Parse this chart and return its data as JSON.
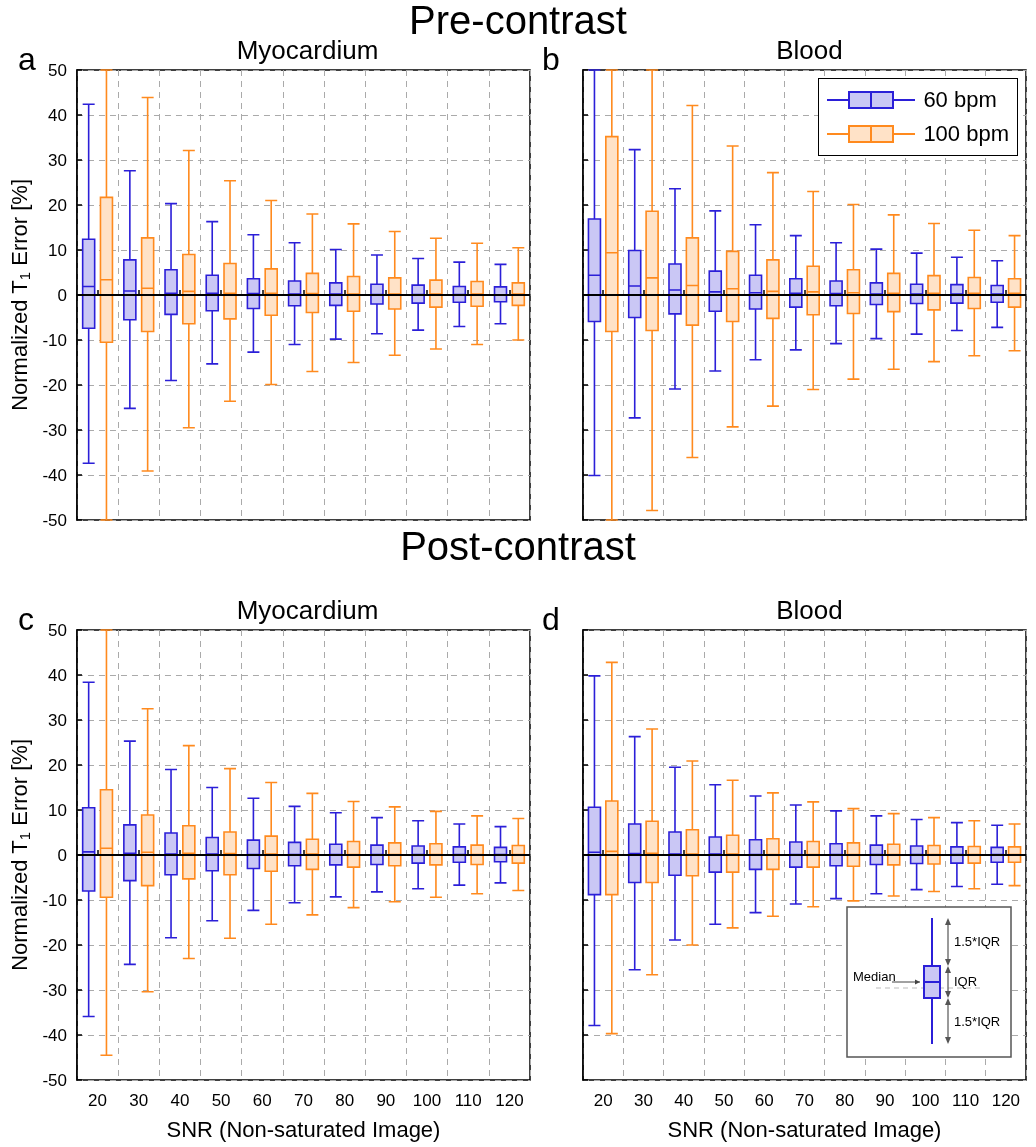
{
  "chart_data": [
    {
      "type": "box",
      "title": "Myocardium",
      "subtitle": "Pre-contrast",
      "ylabel": "Normalized T$_{1}$ Error [%]",
      "annotations": [
        "a"
      ],
      "categories": [
        "20",
        "30",
        "40",
        "50",
        "60",
        "70",
        "80",
        "90",
        "100",
        "110",
        "120"
      ],
      "ylim": [
        -50,
        50
      ],
      "yticks": [
        -50,
        -40,
        -30,
        -20,
        -10,
        0,
        10,
        20,
        30,
        40,
        50
      ],
      "grid": true,
      "legend": false,
      "tick_labels": "y",
      "ref_lines": [
        {
          "axis": "y",
          "value": 0,
          "color": "#000000"
        }
      ],
      "series": [
        {
          "color": "#2b1fd8",
          "boxes": [
            {
              "low": -37.4,
              "q1": -7.4,
              "median": 1.9,
              "q3": 12.4,
              "high": 42.4
            },
            {
              "low": -25.2,
              "q1": -5.5,
              "median": 0.9,
              "q3": 7.8,
              "high": 27.6
            },
            {
              "low": -19,
              "q1": -4.3,
              "median": 0.4,
              "q3": 5.6,
              "high": 20.3
            },
            {
              "low": -15.3,
              "q1": -3.5,
              "median": 0.4,
              "q3": 4.4,
              "high": 16.3
            },
            {
              "low": -12.7,
              "q1": -3,
              "median": 0.3,
              "q3": 3.6,
              "high": 13.4
            },
            {
              "low": -11,
              "q1": -2.4,
              "median": 0.2,
              "q3": 3.1,
              "high": 11.6
            },
            {
              "low": -9.8,
              "q1": -2.3,
              "median": 0.2,
              "q3": 2.7,
              "high": 10.1
            },
            {
              "low": -8.6,
              "q1": -2,
              "median": 0.1,
              "q3": 2.4,
              "high": 8.9
            },
            {
              "low": -7.8,
              "q1": -1.8,
              "median": 0.1,
              "q3": 2.2,
              "high": 8.1
            },
            {
              "low": -7,
              "q1": -1.6,
              "median": 0.1,
              "q3": 1.9,
              "high": 7.3
            },
            {
              "low": -6.4,
              "q1": -1.5,
              "median": 0,
              "q3": 1.8,
              "high": 6.8
            }
          ]
        },
        {
          "color": "#ff8a1e",
          "boxes": [
            {
              "low": -50,
              "q1": -10.5,
              "median": 3.4,
              "q3": 21.7,
              "high": 50
            },
            {
              "low": -39.1,
              "q1": -8.1,
              "median": 1.5,
              "q3": 12.7,
              "high": 43.9
            },
            {
              "low": -29.5,
              "q1": -6.4,
              "median": 0.8,
              "q3": 9,
              "high": 32.1
            },
            {
              "low": -23.6,
              "q1": -5.3,
              "median": 0.4,
              "q3": 7,
              "high": 25.4
            },
            {
              "low": -19.9,
              "q1": -4.5,
              "median": 0.4,
              "q3": 5.8,
              "high": 21
            },
            {
              "low": -17,
              "q1": -3.9,
              "median": 0.3,
              "q3": 4.8,
              "high": 18
            },
            {
              "low": -15,
              "q1": -3.6,
              "median": 0.2,
              "q3": 4.1,
              "high": 15.8
            },
            {
              "low": -13.4,
              "q1": -3.1,
              "median": 0.2,
              "q3": 3.8,
              "high": 14.1
            },
            {
              "low": -12,
              "q1": -2.7,
              "median": 0.2,
              "q3": 3.3,
              "high": 12.6
            },
            {
              "low": -11,
              "q1": -2.5,
              "median": 0.2,
              "q3": 3,
              "high": 11.5
            },
            {
              "low": -10,
              "q1": -2.3,
              "median": 0.2,
              "q3": 2.7,
              "high": 10.5
            }
          ]
        }
      ]
    },
    {
      "type": "box",
      "title": "Blood",
      "annotations": [
        "b"
      ],
      "categories": [
        "20",
        "30",
        "40",
        "50",
        "60",
        "70",
        "80",
        "90",
        "100",
        "110",
        "120"
      ],
      "ylim": [
        -50,
        50
      ],
      "yticks": [
        -50,
        -40,
        -30,
        -20,
        -10,
        0,
        10,
        20,
        30,
        40,
        50
      ],
      "grid": true,
      "legend": "top right",
      "tick_labels": false,
      "ref_lines": [
        {
          "axis": "y",
          "value": 0,
          "color": "#000000"
        }
      ],
      "series": [
        {
          "name": "60 bpm",
          "color": "#2b1fd8",
          "boxes": [
            {
              "low": -40.1,
              "q1": -5.9,
              "median": 4.4,
              "q3": 16.9,
              "high": 50
            },
            {
              "low": -27.3,
              "q1": -5,
              "median": 2,
              "q3": 9.9,
              "high": 32.3
            },
            {
              "low": -20.9,
              "q1": -4.2,
              "median": 1.1,
              "q3": 6.9,
              "high": 23.6
            },
            {
              "low": -16.9,
              "q1": -3.6,
              "median": 0.7,
              "q3": 5.3,
              "high": 18.7
            },
            {
              "low": -14.4,
              "q1": -3.1,
              "median": 0.5,
              "q3": 4.4,
              "high": 15.6
            },
            {
              "low": -12.2,
              "q1": -2.7,
              "median": 0.4,
              "q3": 3.6,
              "high": 13.2
            },
            {
              "low": -10.8,
              "q1": -2.4,
              "median": 0.3,
              "q3": 3.1,
              "high": 11.6
            },
            {
              "low": -9.7,
              "q1": -2.1,
              "median": 0.2,
              "q3": 2.7,
              "high": 10.2
            },
            {
              "low": -8.7,
              "q1": -1.9,
              "median": 0.2,
              "q3": 2.4,
              "high": 9.3
            },
            {
              "low": -7.9,
              "q1": -1.8,
              "median": 0.2,
              "q3": 2.3,
              "high": 8.4
            },
            {
              "low": -7.2,
              "q1": -1.6,
              "median": 0.2,
              "q3": 2.1,
              "high": 7.6
            }
          ]
        },
        {
          "name": "100 bpm",
          "color": "#ff8a1e",
          "boxes": [
            {
              "low": -50,
              "q1": -8.1,
              "median": 9.4,
              "q3": 35.2,
              "high": 50
            },
            {
              "low": -47.9,
              "q1": -7.9,
              "median": 3.8,
              "q3": 18.6,
              "high": 50
            },
            {
              "low": -36.1,
              "q1": -6.7,
              "median": 2.1,
              "q3": 12.7,
              "high": 42.1
            },
            {
              "low": -29.3,
              "q1": -5.9,
              "median": 1.4,
              "q3": 9.7,
              "high": 33.1
            },
            {
              "low": -24.7,
              "q1": -5.2,
              "median": 0.8,
              "q3": 7.8,
              "high": 27.2
            },
            {
              "low": -21,
              "q1": -4.4,
              "median": 0.7,
              "q3": 6.4,
              "high": 23
            },
            {
              "low": -18.7,
              "q1": -4.1,
              "median": 0.5,
              "q3": 5.6,
              "high": 20.1
            },
            {
              "low": -16.5,
              "q1": -3.7,
              "median": 0.4,
              "q3": 4.8,
              "high": 17.8
            },
            {
              "low": -14.8,
              "q1": -3.3,
              "median": 0.4,
              "q3": 4.3,
              "high": 15.9
            },
            {
              "low": -13.5,
              "q1": -3,
              "median": 0.4,
              "q3": 3.9,
              "high": 14.4
            },
            {
              "low": -12.4,
              "q1": -2.7,
              "median": 0.4,
              "q3": 3.6,
              "high": 13.2
            }
          ]
        }
      ]
    },
    {
      "type": "box",
      "title": "Myocardium",
      "subtitle": "Post-contrast",
      "xlabel": "SNR (Non-saturated Image)",
      "ylabel": "Normalized T$_{1}$ Error [%]",
      "annotations": [
        "c"
      ],
      "categories": [
        "20",
        "30",
        "40",
        "50",
        "60",
        "70",
        "80",
        "90",
        "100",
        "110",
        "120"
      ],
      "ylim": [
        -50,
        50
      ],
      "yticks": [
        -50,
        -40,
        -30,
        -20,
        -10,
        0,
        10,
        20,
        30,
        40,
        50
      ],
      "grid": true,
      "legend": false,
      "ref_lines": [
        {
          "axis": "y",
          "value": 0,
          "color": "#000000"
        }
      ],
      "series": [
        {
          "color": "#2b1fd8",
          "boxes": [
            {
              "low": -35.9,
              "q1": -8,
              "median": 0.7,
              "q3": 10.5,
              "high": 38.4
            },
            {
              "low": -24.3,
              "q1": -5.7,
              "median": 0.4,
              "q3": 6.7,
              "high": 25.3
            },
            {
              "low": -18.4,
              "q1": -4.4,
              "median": 0.2,
              "q3": 4.9,
              "high": 19
            },
            {
              "low": -14.6,
              "q1": -3.5,
              "median": 0.2,
              "q3": 3.9,
              "high": 15
            },
            {
              "low": -12.3,
              "q1": -3,
              "median": 0.1,
              "q3": 3.3,
              "high": 12.6
            },
            {
              "low": -10.6,
              "q1": -2.4,
              "median": 0.1,
              "q3": 2.8,
              "high": 10.8
            },
            {
              "low": -9.3,
              "q1": -2.2,
              "median": 0.1,
              "q3": 2.4,
              "high": 9.4
            },
            {
              "low": -8.2,
              "q1": -2.1,
              "median": 0.1,
              "q3": 2.2,
              "high": 8.3
            },
            {
              "low": -7.5,
              "q1": -1.8,
              "median": 0.1,
              "q3": 2,
              "high": 7.6
            },
            {
              "low": -6.7,
              "q1": -1.6,
              "median": 0.1,
              "q3": 1.8,
              "high": 6.9
            },
            {
              "low": -6.2,
              "q1": -1.5,
              "median": 0.1,
              "q3": 1.7,
              "high": 6.3
            }
          ]
        },
        {
          "color": "#ff8a1e",
          "boxes": [
            {
              "low": -44.5,
              "q1": -9.4,
              "median": 1.5,
              "q3": 14.5,
              "high": 50
            },
            {
              "low": -30.4,
              "q1": -6.8,
              "median": 0.6,
              "q3": 8.9,
              "high": 32.5
            },
            {
              "low": -23,
              "q1": -5.3,
              "median": 0.4,
              "q3": 6.5,
              "high": 24.3
            },
            {
              "low": -18.5,
              "q1": -4.4,
              "median": 0.3,
              "q3": 5.1,
              "high": 19.2
            },
            {
              "low": -15.4,
              "q1": -3.6,
              "median": 0.2,
              "q3": 4.2,
              "high": 16.1
            },
            {
              "low": -13.3,
              "q1": -3.2,
              "median": 0.2,
              "q3": 3.5,
              "high": 13.7
            },
            {
              "low": -11.7,
              "q1": -2.7,
              "median": 0.1,
              "q3": 3,
              "high": 11.9
            },
            {
              "low": -10.4,
              "q1": -2.4,
              "median": 0.1,
              "q3": 2.7,
              "high": 10.7
            },
            {
              "low": -9.4,
              "q1": -2.2,
              "median": 0.1,
              "q3": 2.5,
              "high": 9.7
            },
            {
              "low": -8.6,
              "q1": -2.1,
              "median": 0.1,
              "q3": 2.2,
              "high": 8.7
            },
            {
              "low": -7.9,
              "q1": -1.8,
              "median": 0.1,
              "q3": 2.1,
              "high": 8.1
            }
          ]
        }
      ]
    },
    {
      "type": "box",
      "title": "Blood",
      "xlabel": "SNR (Non-saturated Image)",
      "annotations": [
        "d",
        "Median",
        "IQR",
        "1.5*IQR",
        "1.5*IQR"
      ],
      "categories": [
        "20",
        "30",
        "40",
        "50",
        "60",
        "70",
        "80",
        "90",
        "100",
        "110",
        "120"
      ],
      "ylim": [
        -50,
        50
      ],
      "yticks": [
        -50,
        -40,
        -30,
        -20,
        -10,
        0,
        10,
        20,
        30,
        40,
        50
      ],
      "grid": true,
      "legend": false,
      "tick_labels": "x",
      "ref_lines": [
        {
          "axis": "y",
          "value": 0,
          "color": "#000000"
        }
      ],
      "series": [
        {
          "color": "#2b1fd8",
          "boxes": [
            {
              "low": -37.9,
              "q1": -8.8,
              "median": 0.6,
              "q3": 10.6,
              "high": 39.8
            },
            {
              "low": -25.5,
              "q1": -6.1,
              "median": 0.3,
              "q3": 6.9,
              "high": 26.3
            },
            {
              "low": -18.9,
              "q1": -4.5,
              "median": 0.2,
              "q3": 5.1,
              "high": 19.5
            },
            {
              "low": -15.4,
              "q1": -3.8,
              "median": 0.2,
              "q3": 4,
              "high": 15.6
            },
            {
              "low": -12.8,
              "q1": -3.2,
              "median": 0.1,
              "q3": 3.4,
              "high": 13.1
            },
            {
              "low": -10.9,
              "q1": -2.7,
              "median": 0.1,
              "q3": 2.9,
              "high": 11.1
            },
            {
              "low": -9.7,
              "q1": -2.4,
              "median": 0.1,
              "q3": 2.5,
              "high": 9.8
            },
            {
              "low": -8.6,
              "q1": -2.1,
              "median": 0.1,
              "q3": 2.2,
              "high": 8.7
            },
            {
              "low": -7.7,
              "q1": -1.9,
              "median": 0.1,
              "q3": 2,
              "high": 7.9
            },
            {
              "low": -7,
              "q1": -1.8,
              "median": 0.1,
              "q3": 1.8,
              "high": 7.2
            },
            {
              "low": -6.5,
              "q1": -1.6,
              "median": 0.1,
              "q3": 1.7,
              "high": 6.6
            }
          ]
        },
        {
          "color": "#ff8a1e",
          "boxes": [
            {
              "low": -39.7,
              "q1": -8.8,
              "median": 0.8,
              "q3": 12,
              "high": 42.8
            },
            {
              "low": -26.6,
              "q1": -6.1,
              "median": 0.4,
              "q3": 7.5,
              "high": 28
            },
            {
              "low": -20,
              "q1": -4.6,
              "median": 0.2,
              "q3": 5.6,
              "high": 20.9
            },
            {
              "low": -16.2,
              "q1": -3.8,
              "median": 0.2,
              "q3": 4.4,
              "high": 16.6
            },
            {
              "low": -13.6,
              "q1": -3.2,
              "median": 0.1,
              "q3": 3.6,
              "high": 13.8
            },
            {
              "low": -11.5,
              "q1": -2.7,
              "median": 0.1,
              "q3": 3,
              "high": 11.8
            },
            {
              "low": -10.2,
              "q1": -2.5,
              "median": 0.1,
              "q3": 2.7,
              "high": 10.3
            },
            {
              "low": -9.1,
              "q1": -2.2,
              "median": 0.1,
              "q3": 2.4,
              "high": 9.2
            },
            {
              "low": -8.1,
              "q1": -2,
              "median": 0.1,
              "q3": 2.1,
              "high": 8.3
            },
            {
              "low": -7.5,
              "q1": -1.8,
              "median": 0.1,
              "q3": 1.9,
              "high": 7.6
            },
            {
              "low": -6.8,
              "q1": -1.6,
              "median": 0.1,
              "q3": 1.8,
              "high": 6.9
            }
          ]
        }
      ]
    }
  ]
}
